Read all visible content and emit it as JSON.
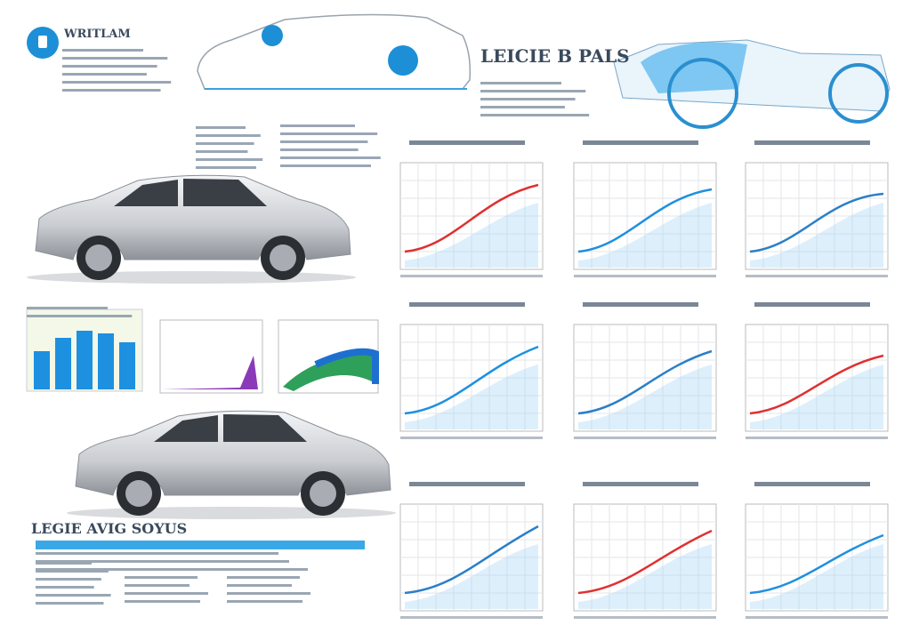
{
  "header": {
    "brand": "WRITLAM"
  },
  "sections": [
    {
      "title": "LEICIE B PALS"
    },
    {
      "title": "LEGIE AVIG SOYUS"
    }
  ]
}
